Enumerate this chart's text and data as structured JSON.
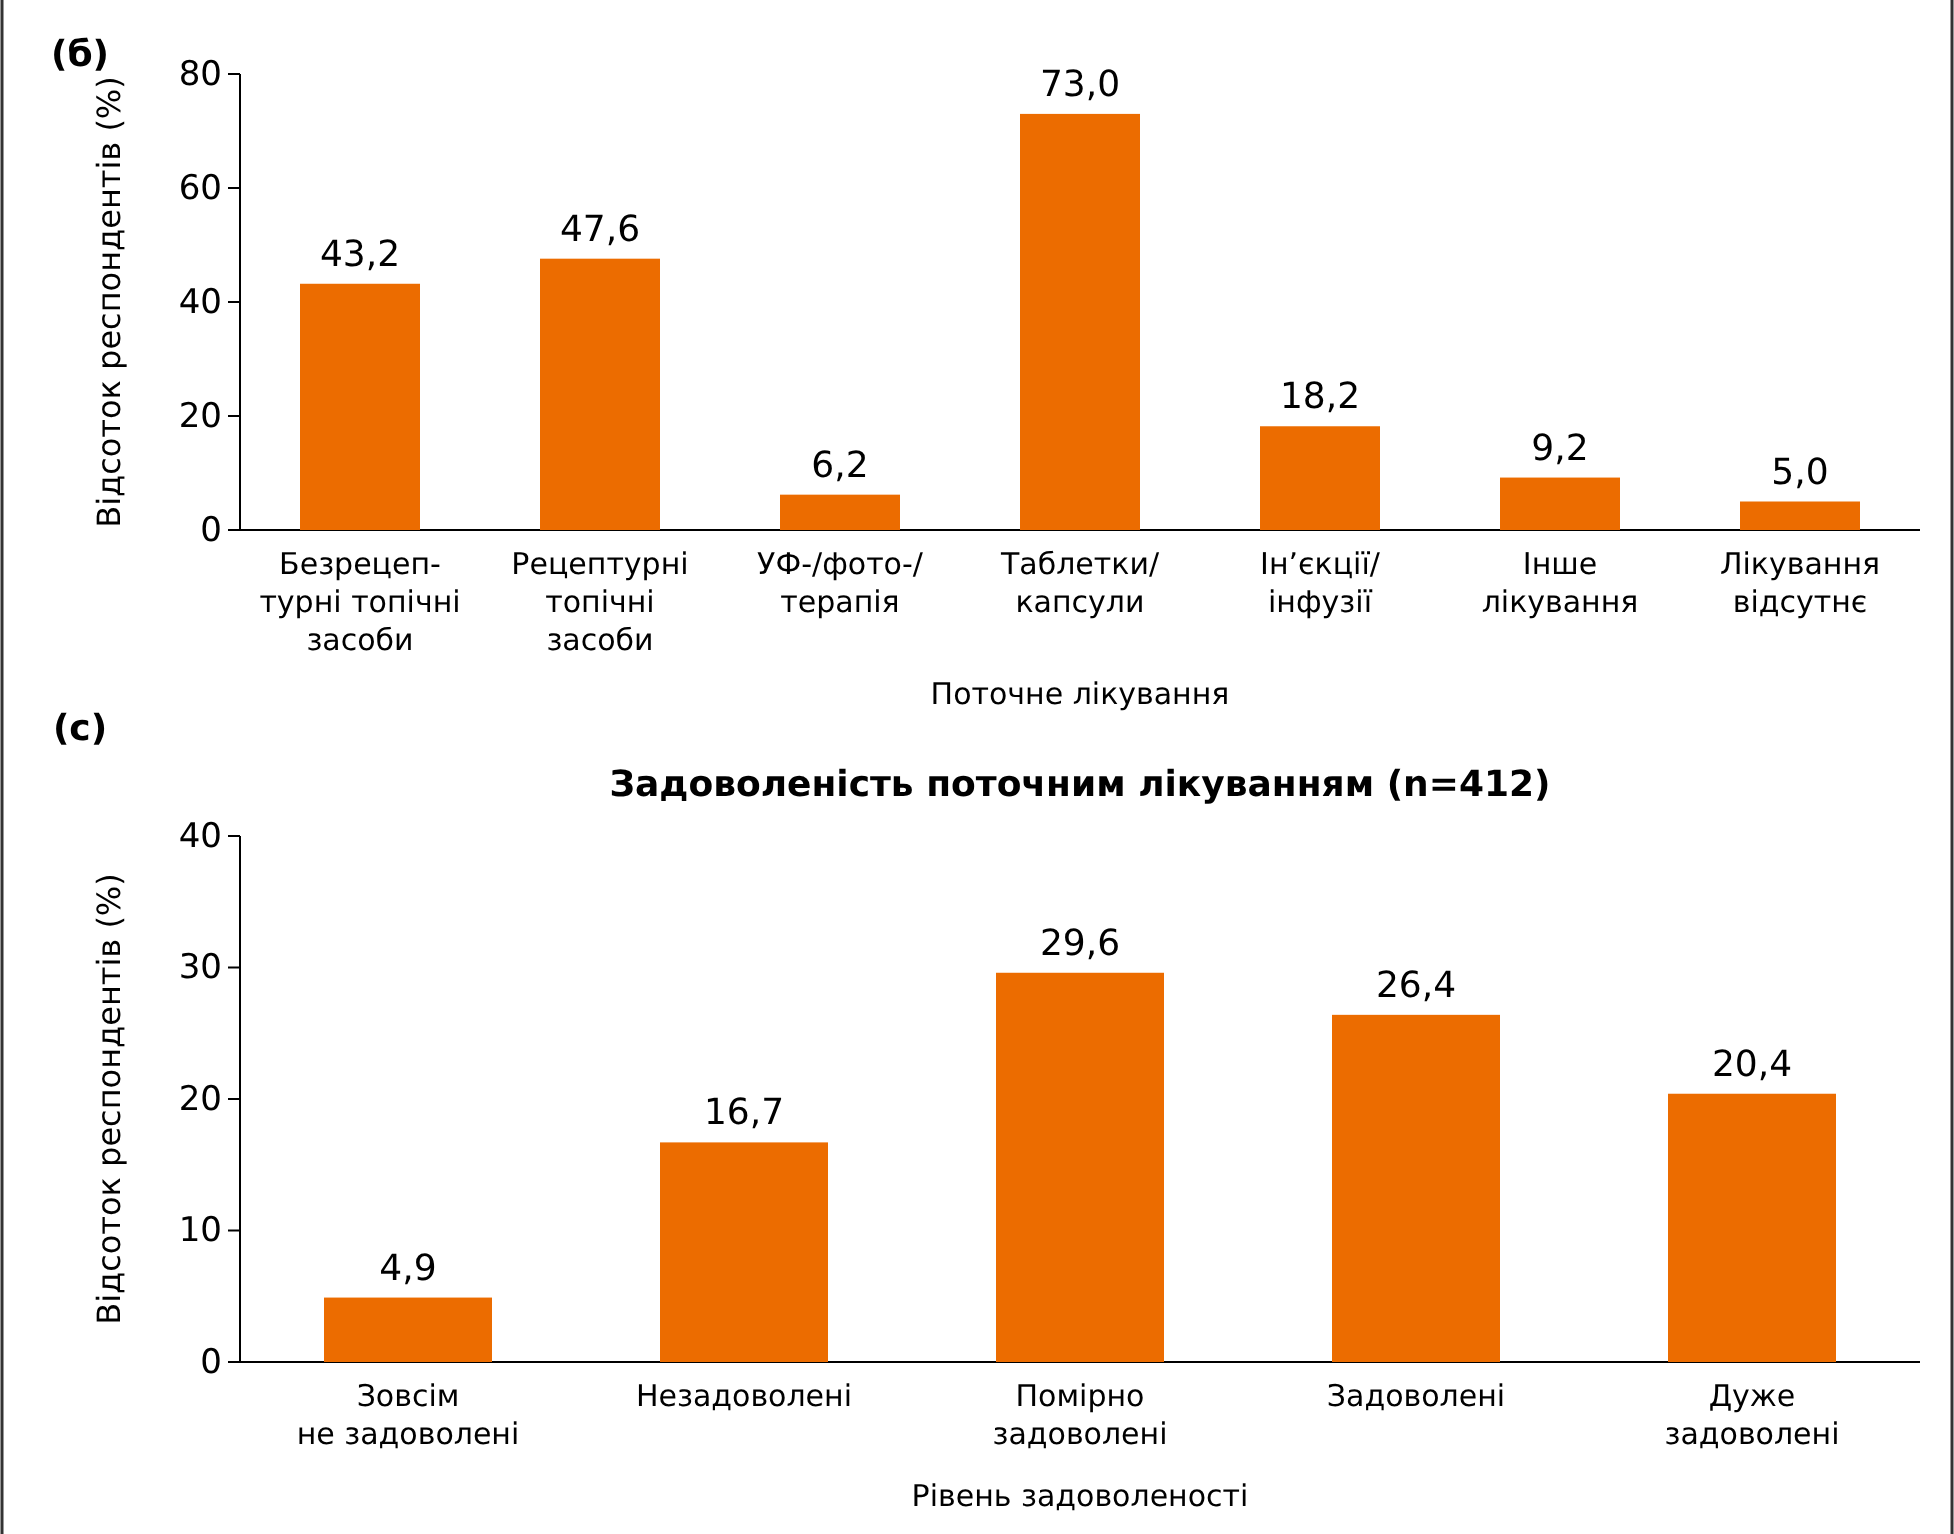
{
  "chart_data": [
    {
      "type": "bar",
      "categories": [
        "Безрецеп-\nтурні топічні\nзасоби",
        "Рецептурні\nтопічні\nзасоби",
        "УФ-/фото-/\nтерапія",
        "Таблетки/\nкапсули",
        "Ін’єкції/\nінфузії",
        "Інше\nлікування",
        "Лікування\nвідсутнє"
      ],
      "values": [
        43.2,
        47.6,
        6.2,
        73.0,
        18.2,
        9.2,
        5.0
      ],
      "value_labels": [
        "43,2",
        "47,6",
        "6,2",
        "73,0",
        "18,2",
        "9,2",
        "5,0"
      ],
      "color": "#ec6c00",
      "ylim": [
        0,
        80
      ],
      "yticks": [
        0,
        20,
        40,
        60,
        80
      ],
      "xlabel": "Поточне лікування",
      "ylabel": "Відсоток респондентів (%)",
      "annotations": [
        "(б)"
      ],
      "grid": false
    },
    {
      "type": "bar",
      "title": "Задоволеність поточним лікуванням (n=412)",
      "categories": [
        "Зовсім\nне задоволені",
        "Незадоволені",
        "Помірно\nзадоволені",
        "Задоволені",
        "Дуже\nзадоволені"
      ],
      "values": [
        4.9,
        16.7,
        29.6,
        26.4,
        20.4
      ],
      "value_labels": [
        "4,9",
        "16,7",
        "29,6",
        "26,4",
        "20,4"
      ],
      "color": "#ec6c00",
      "ylim": [
        0,
        40
      ],
      "yticks": [
        0,
        10,
        20,
        30,
        40
      ],
      "xlabel": "Рівень задоволеності",
      "ylabel": "Відсоток респондентів (%)",
      "annotations": [
        "(с)"
      ],
      "grid": false
    }
  ]
}
